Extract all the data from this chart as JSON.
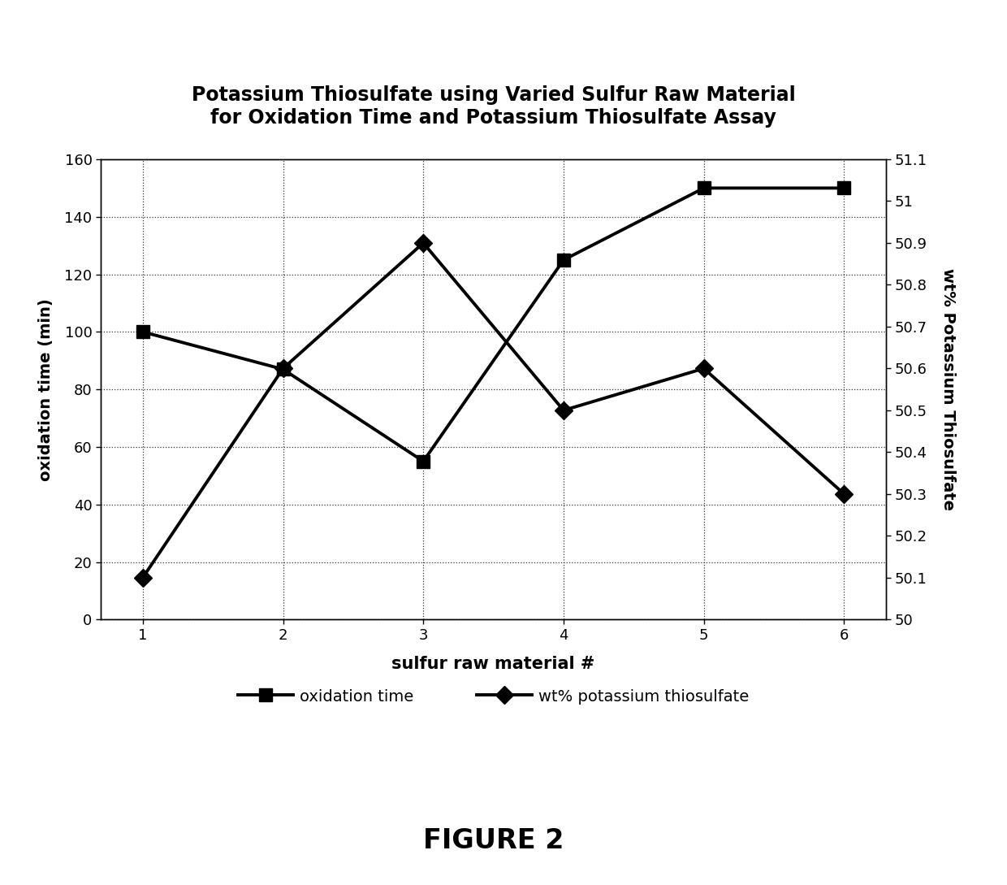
{
  "title_line1": "Potassium Thiosulfate using Varied Sulfur Raw Material",
  "title_line2": "for Oxidation Time and Potassium Thiosulfate Assay",
  "xlabel": "sulfur raw material #",
  "ylabel_left": "oxidation time (min)",
  "ylabel_right": "wt% Potassium Thiosulfate",
  "x": [
    1,
    2,
    3,
    4,
    5,
    6
  ],
  "oxidation_time": [
    100,
    87,
    55,
    125,
    150,
    150
  ],
  "wt_percent": [
    50.1,
    50.6,
    50.9,
    50.5,
    50.6,
    50.3
  ],
  "left_ylim": [
    0,
    160
  ],
  "left_yticks": [
    0,
    20,
    40,
    60,
    80,
    100,
    120,
    140,
    160
  ],
  "right_ylim": [
    50.0,
    51.1
  ],
  "right_yticks": [
    50.0,
    50.1,
    50.2,
    50.3,
    50.4,
    50.5,
    50.6,
    50.7,
    50.8,
    50.9,
    51.0,
    51.1
  ],
  "xlim": [
    0.7,
    6.3
  ],
  "xticks": [
    1,
    2,
    3,
    4,
    5,
    6
  ],
  "line_color": "#000000",
  "marker_square": "s",
  "marker_diamond": "D",
  "marker_size": 11,
  "linewidth": 2.8,
  "legend_oxidation": "oxidation time",
  "legend_wt": "wt% potassium thiosulfate",
  "figure_label": "FIGURE 2",
  "background_color": "#ffffff"
}
